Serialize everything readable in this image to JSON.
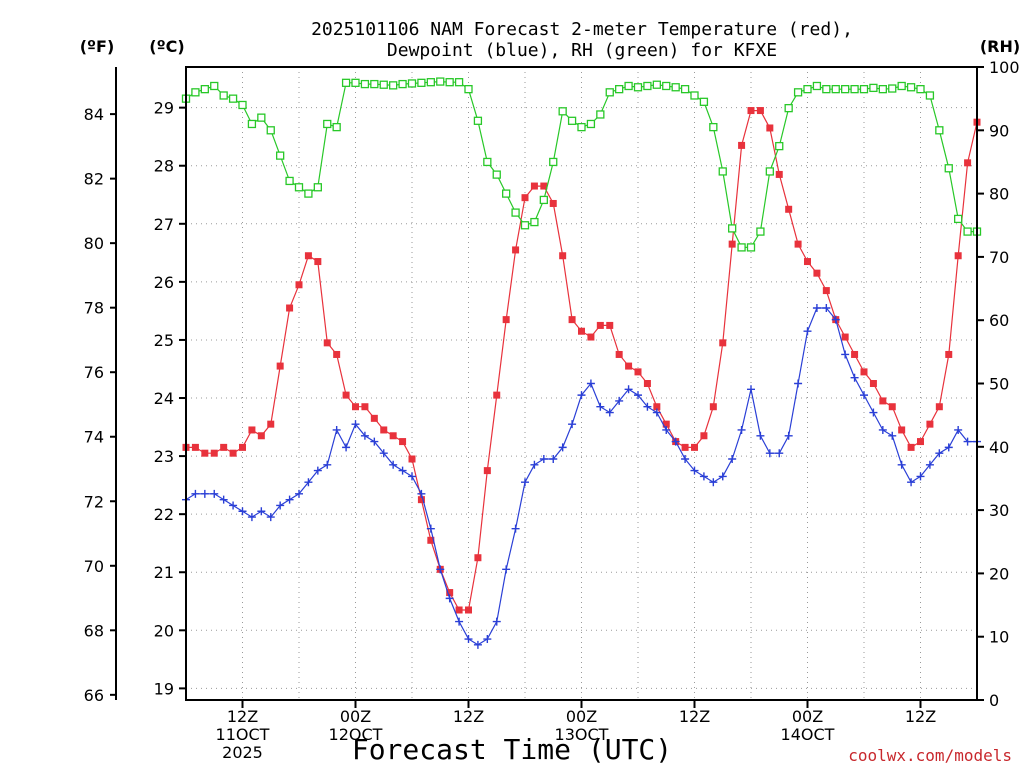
{
  "chart_data": {
    "type": "line",
    "title_line1": "2025101106 NAM Forecast 2-meter Temperature (red),",
    "title_line2": "Dewpoint (blue), RH (green) for KFXE",
    "xlabel": "Forecast Time (UTC)",
    "credit": "coolwx.com/models",
    "units": {
      "fahrenheit": "(ºF)",
      "celsius": "(ºC)",
      "rh": "(RH)"
    },
    "time_range_hours": [
      6,
      90
    ],
    "celsius_range": [
      18.8,
      29.7
    ],
    "fahrenheit_ticks": [
      "66",
      "68",
      "70",
      "72",
      "74",
      "76",
      "78",
      "80",
      "82",
      "84"
    ],
    "celsius_ticks": [
      "19",
      "20",
      "21",
      "22",
      "23",
      "24",
      "25",
      "26",
      "27",
      "28",
      "29"
    ],
    "rh_range": [
      0,
      100
    ],
    "rh_ticks": [
      "0",
      "10",
      "20",
      "30",
      "40",
      "50",
      "60",
      "70",
      "80",
      "90",
      "100"
    ],
    "x_ticks": [
      {
        "hour": 12,
        "lines": [
          "12Z",
          "11OCT",
          "2025"
        ]
      },
      {
        "hour": 24,
        "lines": [
          "00Z",
          "12OCT"
        ]
      },
      {
        "hour": 36,
        "lines": [
          "12Z"
        ]
      },
      {
        "hour": 48,
        "lines": [
          "00Z",
          "13OCT"
        ]
      },
      {
        "hour": 60,
        "lines": [
          "12Z"
        ]
      },
      {
        "hour": 72,
        "lines": [
          "00Z",
          "14OCT"
        ]
      },
      {
        "hour": 84,
        "lines": [
          "12Z"
        ]
      }
    ],
    "grid": true,
    "series": [
      {
        "key": "temperature",
        "color": "#e8323c",
        "marker": "filled-square",
        "x": [
          6,
          7,
          8,
          9,
          10,
          11,
          12,
          13,
          14,
          15,
          16,
          17,
          18,
          19,
          20,
          21,
          22,
          23,
          24,
          25,
          26,
          27,
          28,
          29,
          30,
          31,
          32,
          33,
          34,
          35,
          36,
          37,
          38,
          39,
          40,
          41,
          42,
          43,
          44,
          45,
          46,
          47,
          48,
          49,
          50,
          51,
          52,
          53,
          54,
          55,
          56,
          57,
          58,
          59,
          60,
          61,
          62,
          63,
          64,
          65,
          66,
          67,
          68,
          69,
          70,
          71,
          72,
          73,
          74,
          75,
          76,
          77,
          78,
          79,
          80,
          81,
          82,
          83,
          84,
          85,
          86,
          87,
          88,
          89,
          90
        ],
        "values": [
          23.15,
          23.15,
          23.05,
          23.05,
          23.15,
          23.05,
          23.15,
          23.45,
          23.35,
          23.55,
          24.55,
          25.55,
          25.95,
          26.45,
          26.35,
          24.95,
          24.75,
          24.05,
          23.85,
          23.85,
          23.65,
          23.45,
          23.35,
          23.25,
          22.95,
          22.25,
          21.55,
          21.05,
          20.65,
          20.35,
          20.35,
          21.25,
          22.75,
          24.05,
          25.35,
          26.55,
          27.45,
          27.65,
          27.65,
          27.35,
          26.45,
          25.35,
          25.15,
          25.05,
          25.25,
          25.25,
          24.75,
          24.55,
          24.45,
          24.25,
          23.85,
          23.55,
          23.25,
          23.15,
          23.15,
          23.35,
          23.85,
          24.95,
          26.65,
          28.35,
          28.95,
          28.95,
          28.65,
          27.85,
          27.25,
          26.65,
          26.35,
          26.15,
          25.85,
          25.35,
          25.05,
          24.75,
          24.45,
          24.25,
          23.95,
          23.85,
          23.45,
          23.15,
          23.25,
          23.55,
          23.85,
          24.75,
          26.45,
          28.05,
          28.75
        ]
      },
      {
        "key": "dewpoint",
        "color": "#2a3fd6",
        "marker": "plus",
        "x": [
          6,
          7,
          8,
          9,
          10,
          11,
          12,
          13,
          14,
          15,
          16,
          17,
          18,
          19,
          20,
          21,
          22,
          23,
          24,
          25,
          26,
          27,
          28,
          29,
          30,
          31,
          32,
          33,
          34,
          35,
          36,
          37,
          38,
          39,
          40,
          41,
          42,
          43,
          44,
          45,
          46,
          47,
          48,
          49,
          50,
          51,
          52,
          53,
          54,
          55,
          56,
          57,
          58,
          59,
          60,
          61,
          62,
          63,
          64,
          65,
          66,
          67,
          68,
          69,
          70,
          71,
          72,
          73,
          74,
          75,
          76,
          77,
          78,
          79,
          80,
          81,
          82,
          83,
          84,
          85,
          86,
          87,
          88,
          89,
          90
        ],
        "values": [
          22.25,
          22.35,
          22.35,
          22.35,
          22.25,
          22.15,
          22.05,
          21.95,
          22.05,
          21.95,
          22.15,
          22.25,
          22.35,
          22.55,
          22.75,
          22.85,
          23.45,
          23.15,
          23.55,
          23.35,
          23.25,
          23.05,
          22.85,
          22.75,
          22.65,
          22.35,
          21.75,
          21.05,
          20.55,
          20.15,
          19.85,
          19.75,
          19.85,
          20.15,
          21.05,
          21.75,
          22.55,
          22.85,
          22.95,
          22.95,
          23.15,
          23.55,
          24.05,
          24.25,
          23.85,
          23.75,
          23.95,
          24.15,
          24.05,
          23.85,
          23.75,
          23.45,
          23.25,
          22.95,
          22.75,
          22.65,
          22.55,
          22.65,
          22.95,
          23.45,
          24.15,
          23.35,
          23.05,
          23.05,
          23.35,
          24.25,
          25.15,
          25.55,
          25.55,
          25.35,
          24.75,
          24.35,
          24.05,
          23.75,
          23.45,
          23.35,
          22.85,
          22.55,
          22.65,
          22.85,
          23.05,
          23.15,
          23.45,
          23.25,
          23.25
        ]
      },
      {
        "key": "rh",
        "color": "#28c828",
        "marker": "open-square",
        "x": [
          6,
          7,
          8,
          9,
          10,
          11,
          12,
          13,
          14,
          15,
          16,
          17,
          18,
          19,
          20,
          21,
          22,
          23,
          24,
          25,
          26,
          27,
          28,
          29,
          30,
          31,
          32,
          33,
          34,
          35,
          36,
          37,
          38,
          39,
          40,
          41,
          42,
          43,
          44,
          45,
          46,
          47,
          48,
          49,
          50,
          51,
          52,
          53,
          54,
          55,
          56,
          57,
          58,
          59,
          60,
          61,
          62,
          63,
          64,
          65,
          66,
          67,
          68,
          69,
          70,
          71,
          72,
          73,
          74,
          75,
          76,
          77,
          78,
          79,
          80,
          81,
          82,
          83,
          84,
          85,
          86,
          87,
          88,
          89,
          90
        ],
        "values": [
          95,
          96,
          96.5,
          97,
          95.5,
          95,
          94,
          91,
          92,
          90,
          86,
          82,
          81,
          80,
          81,
          91,
          90.5,
          97.5,
          97.5,
          97.3,
          97.3,
          97.2,
          97.1,
          97.3,
          97.4,
          97.5,
          97.6,
          97.7,
          97.6,
          97.6,
          96.5,
          91.5,
          85,
          83,
          80,
          77,
          75,
          75.5,
          79,
          85,
          93,
          91.5,
          90.5,
          91,
          92.5,
          96,
          96.5,
          97,
          96.8,
          97,
          97.2,
          97,
          96.8,
          96.5,
          95.5,
          94.5,
          90.5,
          83.5,
          74.5,
          71.5,
          71.5,
          74,
          83.5,
          87.5,
          93.5,
          96,
          96.5,
          97,
          96.5,
          96.5,
          96.5,
          96.5,
          96.5,
          96.7,
          96.5,
          96.6,
          97,
          96.8,
          96.5,
          95.5,
          90,
          84,
          76,
          74,
          74
        ]
      }
    ]
  }
}
